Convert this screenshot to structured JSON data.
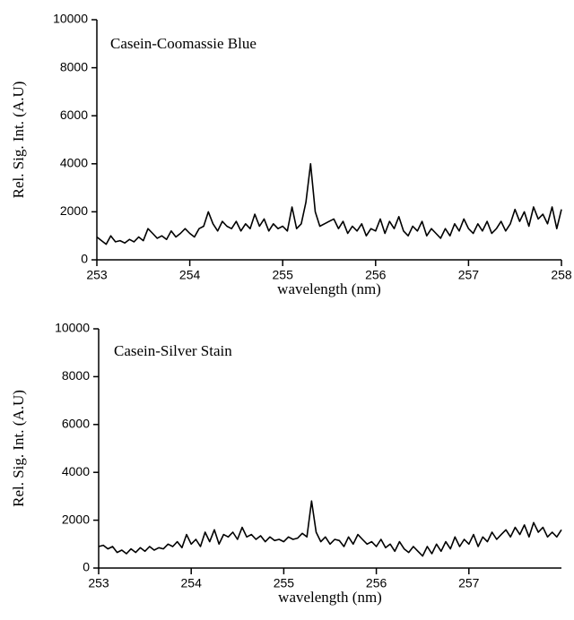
{
  "chart_data": [
    {
      "type": "line",
      "annotation": "Casein-Coomassie Blue",
      "x_label": "wavelength (nm)",
      "y_label": "Rel. Sig. Int. (A.U)",
      "xlim": [
        253,
        258
      ],
      "xticks": [
        253,
        254,
        255,
        256,
        257,
        258
      ],
      "ylim": [
        0,
        10000
      ],
      "yticks": [
        0,
        2000,
        4000,
        6000,
        8000,
        10000
      ],
      "color": "#000000",
      "x": [
        253,
        253.05,
        253.1,
        253.15,
        253.2,
        253.25,
        253.3,
        253.35,
        253.4,
        253.45,
        253.5,
        253.55,
        253.6,
        253.65,
        253.7,
        253.75,
        253.8,
        253.85,
        253.9,
        253.95,
        254,
        254.05,
        254.1,
        254.15,
        254.2,
        254.25,
        254.3,
        254.35,
        254.4,
        254.45,
        254.5,
        254.55,
        254.6,
        254.65,
        254.7,
        254.75,
        254.8,
        254.85,
        254.9,
        254.95,
        255,
        255.05,
        255.1,
        255.15,
        255.2,
        255.25,
        255.3,
        255.35,
        255.4,
        255.45,
        255.5,
        255.55,
        255.6,
        255.65,
        255.7,
        255.75,
        255.8,
        255.85,
        255.9,
        255.95,
        256,
        256.05,
        256.1,
        256.15,
        256.2,
        256.25,
        256.3,
        256.35,
        256.4,
        256.45,
        256.5,
        256.55,
        256.6,
        256.65,
        256.7,
        256.75,
        256.8,
        256.85,
        256.9,
        256.95,
        257,
        257.05,
        257.1,
        257.15,
        257.2,
        257.25,
        257.3,
        257.35,
        257.4,
        257.45,
        257.5,
        257.55,
        257.6,
        257.65,
        257.7,
        257.75,
        257.8,
        257.85,
        257.9,
        257.95,
        258
      ],
      "values": [
        950,
        800,
        650,
        1000,
        750,
        800,
        700,
        850,
        750,
        950,
        800,
        1300,
        1100,
        900,
        1000,
        850,
        1200,
        950,
        1100,
        1300,
        1100,
        950,
        1300,
        1400,
        2000,
        1500,
        1200,
        1600,
        1400,
        1300,
        1600,
        1200,
        1500,
        1300,
        1900,
        1400,
        1700,
        1200,
        1500,
        1300,
        1400,
        1200,
        2200,
        1300,
        1500,
        2400,
        4000,
        2000,
        1400,
        1500,
        1600,
        1700,
        1300,
        1600,
        1100,
        1400,
        1200,
        1500,
        1000,
        1300,
        1200,
        1700,
        1100,
        1600,
        1300,
        1800,
        1200,
        1000,
        1400,
        1200,
        1600,
        1000,
        1300,
        1100,
        900,
        1300,
        1000,
        1500,
        1200,
        1700,
        1300,
        1100,
        1500,
        1200,
        1600,
        1100,
        1300,
        1600,
        1200,
        1500,
        2100,
        1600,
        2000,
        1400,
        2200,
        1700,
        1900,
        1500,
        2200,
        1300,
        2100
      ]
    },
    {
      "type": "line",
      "annotation": "Casein-Silver Stain",
      "x_label": "wavelength (nm)",
      "y_label": "Rel. Sig. Int. (A.U)",
      "xlim": [
        253,
        258
      ],
      "xticks": [
        253,
        254,
        255,
        256,
        257
      ],
      "ylim": [
        0,
        10000
      ],
      "yticks": [
        0,
        2000,
        4000,
        6000,
        8000,
        10000
      ],
      "color": "#000000",
      "x": [
        253,
        253.05,
        253.1,
        253.15,
        253.2,
        253.25,
        253.3,
        253.35,
        253.4,
        253.45,
        253.5,
        253.55,
        253.6,
        253.65,
        253.7,
        253.75,
        253.8,
        253.85,
        253.9,
        253.95,
        254,
        254.05,
        254.1,
        254.15,
        254.2,
        254.25,
        254.3,
        254.35,
        254.4,
        254.45,
        254.5,
        254.55,
        254.6,
        254.65,
        254.7,
        254.75,
        254.8,
        254.85,
        254.9,
        254.95,
        255,
        255.05,
        255.1,
        255.15,
        255.2,
        255.25,
        255.3,
        255.35,
        255.4,
        255.45,
        255.5,
        255.55,
        255.6,
        255.65,
        255.7,
        255.75,
        255.8,
        255.85,
        255.9,
        255.95,
        256,
        256.05,
        256.1,
        256.15,
        256.2,
        256.25,
        256.3,
        256.35,
        256.4,
        256.45,
        256.5,
        256.55,
        256.6,
        256.65,
        256.7,
        256.75,
        256.8,
        256.85,
        256.9,
        256.95,
        257,
        257.05,
        257.1,
        257.15,
        257.2,
        257.25,
        257.3,
        257.35,
        257.4,
        257.45,
        257.5,
        257.55,
        257.6,
        257.65,
        257.7,
        257.75,
        257.8,
        257.85,
        257.9,
        257.95,
        258
      ],
      "values": [
        900,
        950,
        800,
        900,
        650,
        750,
        600,
        800,
        650,
        850,
        700,
        900,
        750,
        850,
        800,
        1000,
        900,
        1100,
        850,
        1400,
        1000,
        1200,
        900,
        1500,
        1100,
        1600,
        1000,
        1400,
        1300,
        1500,
        1200,
        1700,
        1300,
        1400,
        1200,
        1350,
        1100,
        1300,
        1150,
        1200,
        1100,
        1300,
        1200,
        1250,
        1450,
        1300,
        2800,
        1500,
        1100,
        1300,
        1000,
        1200,
        1150,
        900,
        1300,
        1000,
        1400,
        1200,
        1000,
        1100,
        900,
        1200,
        850,
        1000,
        700,
        1100,
        800,
        650,
        900,
        700,
        500,
        900,
        600,
        1000,
        700,
        1100,
        800,
        1300,
        900,
        1200,
        1000,
        1400,
        900,
        1300,
        1100,
        1500,
        1200,
        1400,
        1600,
        1300,
        1700,
        1400,
        1800,
        1300,
        1900,
        1500,
        1700,
        1300,
        1500,
        1300,
        1600
      ]
    }
  ]
}
